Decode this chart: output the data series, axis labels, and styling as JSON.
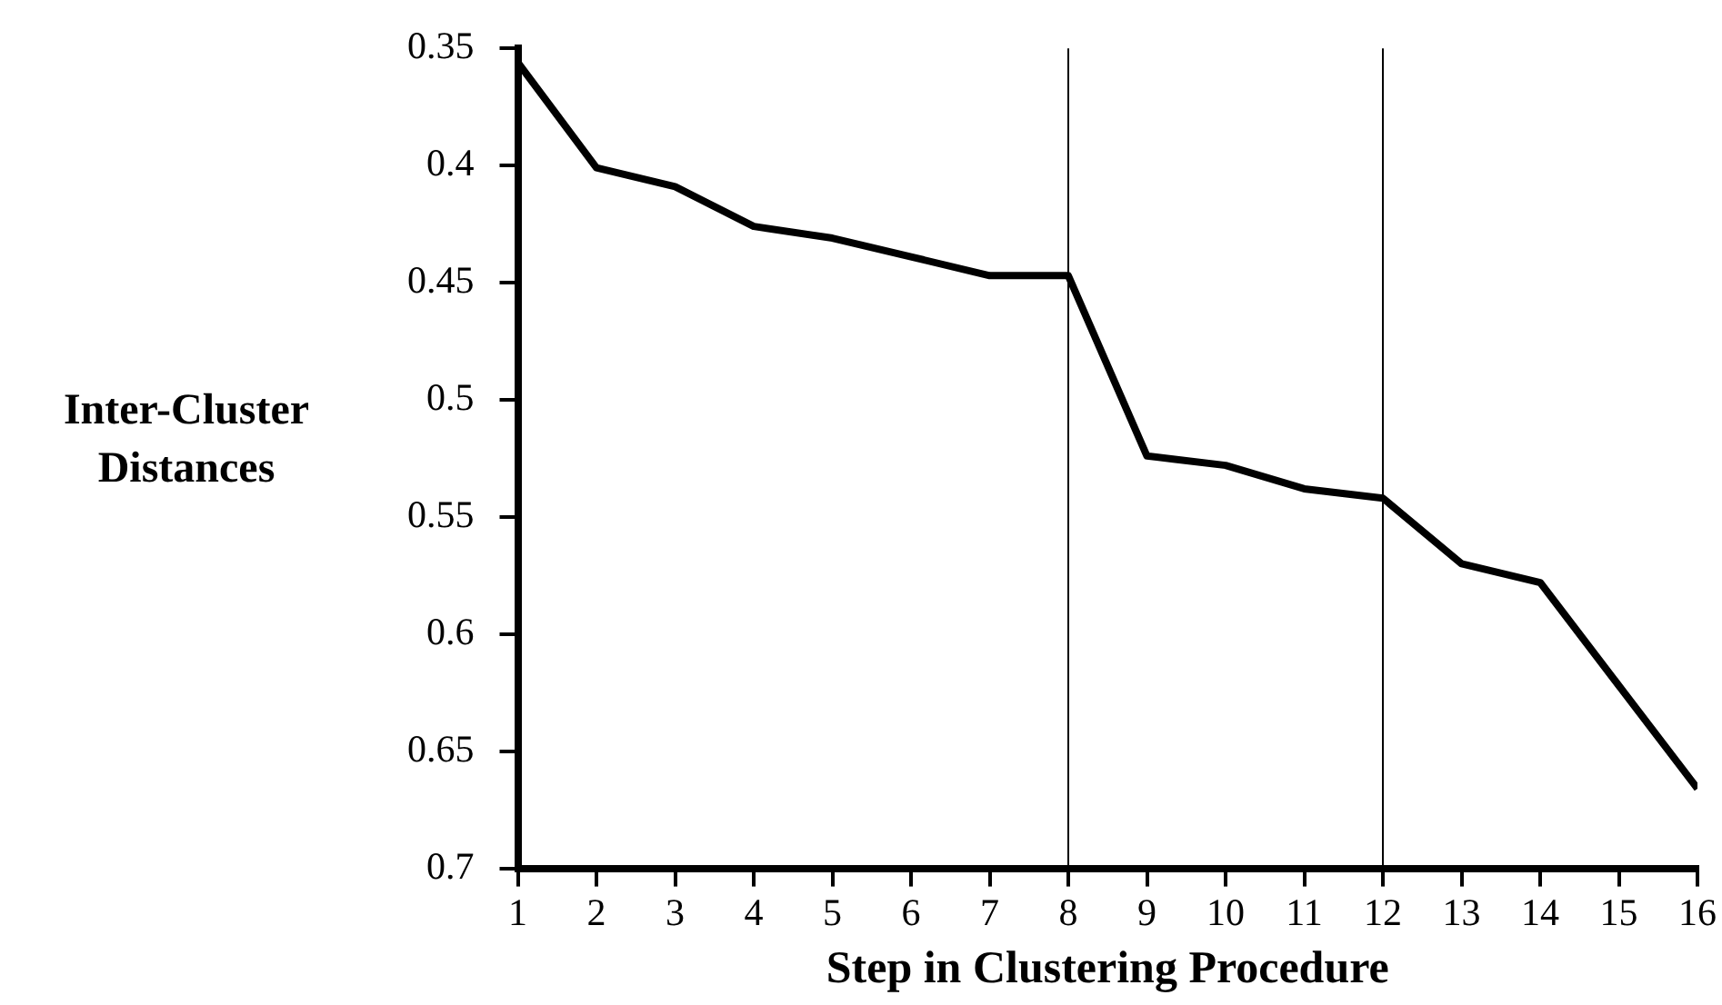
{
  "chart_data": {
    "type": "line",
    "xlabel": "Step in Clustering Procedure",
    "ylabel": "Inter-Cluster Distances",
    "x": [
      1,
      2,
      3,
      4,
      5,
      6,
      7,
      8,
      9,
      10,
      11,
      12,
      13,
      14,
      15,
      16
    ],
    "values": [
      0.356,
      0.401,
      0.409,
      0.426,
      0.431,
      0.439,
      0.447,
      0.447,
      0.524,
      0.528,
      0.538,
      0.542,
      0.57,
      0.578,
      0.622,
      0.666
    ],
    "color": "#000000",
    "xlim": [
      1,
      16
    ],
    "xticks": [
      1,
      2,
      3,
      4,
      5,
      6,
      7,
      8,
      9,
      10,
      11,
      12,
      13,
      14,
      15,
      16
    ],
    "ylim": [
      0.7,
      0.35
    ],
    "yticks": [
      0.35,
      0.4,
      0.45,
      0.5,
      0.55,
      0.6,
      0.65,
      0.7
    ],
    "ref_lines": [
      {
        "axis": "x",
        "value": 8,
        "color": "#000000"
      },
      {
        "axis": "x",
        "value": 12,
        "color": "#000000"
      }
    ],
    "grid": false,
    "legend": false,
    "marker": "none",
    "line_style": "solid"
  }
}
